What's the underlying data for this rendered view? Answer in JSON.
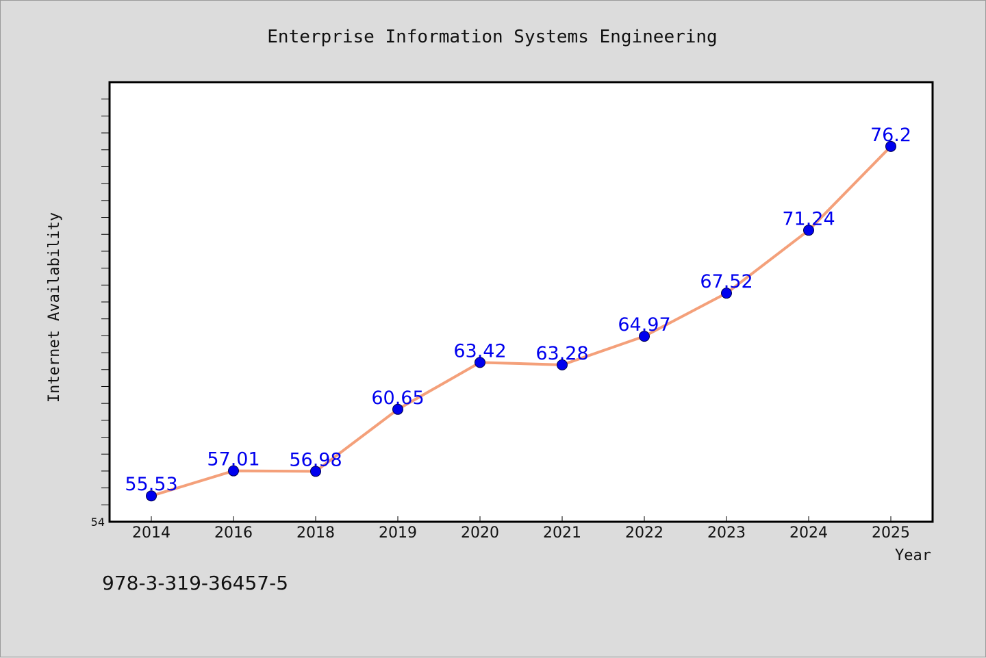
{
  "chart_data": {
    "type": "line",
    "title": "Enterprise Information Systems Engineering",
    "xlabel": "Year",
    "ylabel": "Internet Availability",
    "categories": [
      "2014",
      "2016",
      "2018",
      "2019",
      "2020",
      "2021",
      "2022",
      "2023",
      "2024",
      "2025"
    ],
    "series": [
      {
        "values": [
          55.53,
          57.01,
          56.98,
          60.65,
          63.42,
          63.28,
          64.97,
          67.52,
          71.24,
          76.2
        ],
        "labels": [
          "55.53",
          "57.01",
          "56.98",
          "60.65",
          "63.42",
          "63.28",
          "64.97",
          "67.52",
          "71.24",
          "76.2"
        ],
        "line_color": "#f4a07a",
        "marker_color": "#0000ee"
      }
    ],
    "ylim": [
      54,
      80
    ],
    "y_tick_labels": [
      "54"
    ],
    "grid": false,
    "label_color": "#0000ee"
  },
  "footer": {
    "isbn": "978-3-319-36457-5"
  }
}
